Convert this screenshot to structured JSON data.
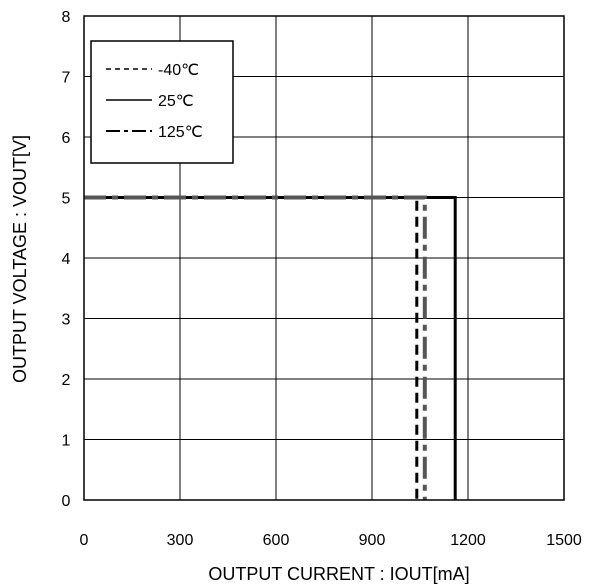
{
  "chart_data": {
    "type": "line",
    "title": "",
    "xlabel": "OUTPUT CURRENT : IOUT[mA]",
    "ylabel": "OUTPUT VOLTAGE : VOUT[V]",
    "xlim": [
      0,
      1500
    ],
    "ylim": [
      0,
      8
    ],
    "xticks": [
      "0",
      "300",
      "600",
      "900",
      "1200",
      "1500"
    ],
    "yticks": [
      "0",
      "1",
      "2",
      "3",
      "4",
      "5",
      "6",
      "7",
      "8"
    ],
    "grid": true,
    "legend_position": "top-left",
    "series": [
      {
        "name": "-40℃",
        "style": "dashed",
        "color": "#000000",
        "x": [
          0,
          1040,
          1040
        ],
        "y": [
          5,
          5,
          0
        ]
      },
      {
        "name": "25℃",
        "style": "solid",
        "color": "#000000",
        "x": [
          0,
          1160,
          1160
        ],
        "y": [
          5,
          5,
          0
        ]
      },
      {
        "name": "125℃",
        "style": "dash-dot",
        "color": "#555555",
        "x": [
          0,
          1065,
          1065
        ],
        "y": [
          5,
          5,
          0
        ]
      }
    ]
  }
}
